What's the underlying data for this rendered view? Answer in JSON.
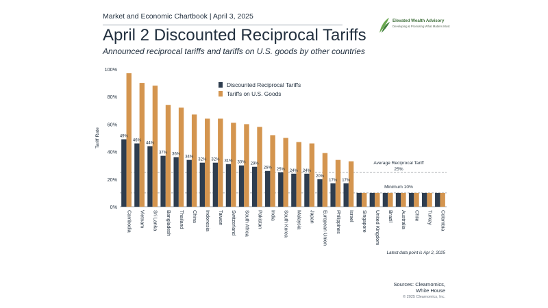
{
  "header": {
    "chartbook": "Market and Economic Chartbook | April 3, 2025",
    "logo_name": "Elevated Wealth Advisory",
    "logo_tagline": "Developing & Promoting What Matters Most",
    "logo_icon": "leaf-icon"
  },
  "title": "April 2 Discounted Reciprocal Tariffs",
  "subtitle": "Announced reciprocal tariffs and tariffs on U.S. goods by other countries",
  "footer": {
    "latest": "Latest data point is Apr 2, 2025",
    "sources_line1": "Sources: Clearnomics,",
    "sources_line2": "White House",
    "copyright": "© 2025 Clearnomics, Inc."
  },
  "colors": {
    "discounted": "#2e3d4f",
    "tariffs": "#d4954f",
    "refline": "#8a8f94"
  },
  "chart_data": {
    "type": "bar",
    "ylabel": "Tariff Rate",
    "ylim": [
      0,
      100
    ],
    "yticks": [
      "0%",
      "20%",
      "40%",
      "60%",
      "80%",
      "100%"
    ],
    "legend_position": "top-center",
    "categories": [
      "Cambodia",
      "Vietnam",
      "Sri Lanka",
      "Bangladesh",
      "Thailand",
      "China",
      "Indonesia",
      "Taiwan",
      "Switzerland",
      "South Africa",
      "Pakistan",
      "India",
      "South Korea",
      "Malaysia",
      "Japan",
      "European Union",
      "Philippines",
      "Israel",
      "Singapore",
      "United Kingdom",
      "Brazil",
      "Australia",
      "Chile",
      "Turkey",
      "Colombia"
    ],
    "series": [
      {
        "name": "Discounted Reciprocal Tariffs",
        "values": [
          49,
          46,
          44,
          37,
          36,
          34,
          32,
          32,
          31,
          30,
          29,
          26,
          25,
          24,
          24,
          20,
          17,
          17,
          10,
          10,
          10,
          10,
          10,
          10,
          10
        ],
        "labels": [
          "49%",
          "46%",
          "44%",
          "37%",
          "36%",
          "34%",
          "32%",
          "32%",
          "31%",
          "30%",
          "29%",
          "26%",
          "25%",
          "24%",
          "24%",
          "20%",
          "17%",
          "17%",
          "",
          "",
          "",
          "",
          "",
          "",
          ""
        ]
      },
      {
        "name": "Tariffs on U.S. Goods",
        "values": [
          97,
          90,
          88,
          74,
          72,
          67,
          64,
          64,
          61,
          60,
          58,
          52,
          50,
          47,
          46,
          39,
          34,
          33,
          10,
          10,
          10,
          10,
          10,
          10,
          10
        ]
      }
    ],
    "reference_lines": [
      {
        "label_line1": "Average Reciprocal Tariff",
        "label_line2": "25%",
        "value": 25
      },
      {
        "label_line1": "Minimum 10%",
        "label_line2": "",
        "value": 10
      }
    ]
  }
}
